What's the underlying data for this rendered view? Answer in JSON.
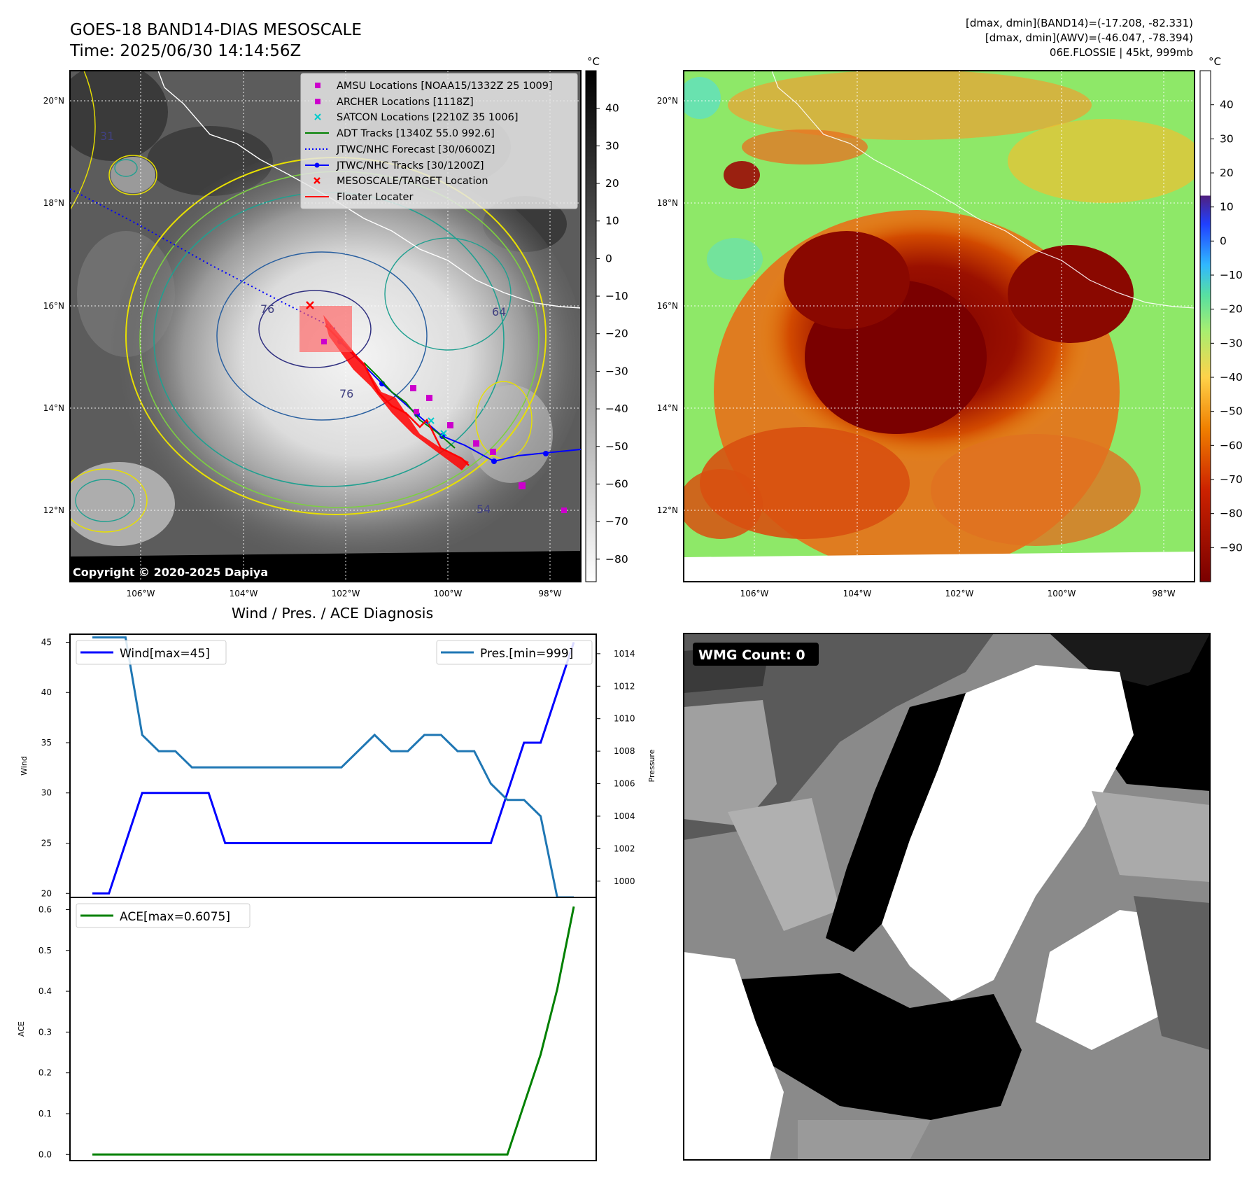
{
  "header": {
    "title_line1": "GOES-18 BAND14-DIAS MESOSCALE",
    "title_line2": "Time: 2025/06/30 14:14:56Z",
    "info_line1": "[dmax, dmin](BAND14)=(-17.208, -82.331)",
    "info_line2": "[dmax, dmin](AWV)=(-46.047, -78.394)",
    "info_line3": "06E.FLOSSIE | 45kt, 999mb"
  },
  "copyright": "Copyright © 2020-2025 Dapiya",
  "colors": {
    "wind": "#0000ff",
    "pressure": "#1f77b4",
    "ace": "#008000",
    "amsu": "#cc00cc",
    "archer": "#cc00cc",
    "satcon": "#00cccc",
    "adt": "#008000",
    "forecast": "#0000ff",
    "best_track": "#0000ff",
    "target": "#ff0000",
    "floater": "#ff0000"
  },
  "map": {
    "lon_ticks": [
      "106°W",
      "104°W",
      "102°W",
      "100°W",
      "98°W"
    ],
    "lat_ticks": [
      "20°N",
      "18°N",
      "16°N",
      "14°N",
      "12°N"
    ],
    "contour_labels": [
      "76",
      "64",
      "76",
      "54",
      "31"
    ],
    "legend": [
      {
        "label": "AMSU Locations [NOAA15/1332Z 25 1009]",
        "icon": "square-marker"
      },
      {
        "label": "ARCHER Locations [1118Z]",
        "icon": "square-marker"
      },
      {
        "label": "SATCON Locations [2210Z 35 1006]",
        "icon": "x-marker"
      },
      {
        "label": "ADT Tracks [1340Z 55.0 992.6]",
        "icon": "solid-line"
      },
      {
        "label": "JTWC/NHC Forecast [30/0600Z]",
        "icon": "dotted-line"
      },
      {
        "label": "JTWC/NHC Tracks [30/1200Z]",
        "icon": "line-with-dots"
      },
      {
        "label": "MESOSCALE/TARGET Location",
        "icon": "x-marker"
      },
      {
        "label": "Floater Locater",
        "icon": "solid-line"
      }
    ]
  },
  "colorbar_left": {
    "unit": "°C",
    "ticks": [
      "40",
      "30",
      "20",
      "10",
      "0",
      "−10",
      "−20",
      "−30",
      "−40",
      "−50",
      "−60",
      "−70",
      "−80"
    ]
  },
  "colorbar_right": {
    "unit": "°C",
    "ticks": [
      "40",
      "30",
      "20",
      "10",
      "0",
      "−10",
      "−20",
      "−30",
      "−40",
      "−50",
      "−60",
      "−70",
      "−80",
      "−90"
    ]
  },
  "chart_data": [
    {
      "type": "line",
      "title": "Wind / Pres. / ACE Diagnosis",
      "ylabel": "Wind",
      "y2label": "Pressure",
      "ylim": [
        19.6,
        45.8
      ],
      "y2lim": [
        999,
        1015.2
      ],
      "yticks": [
        "45",
        "40",
        "35",
        "30",
        "25",
        "20"
      ],
      "y2ticks": [
        "1014",
        "1012",
        "1010",
        "1008",
        "1006",
        "1004",
        "1002",
        "1000"
      ],
      "series": [
        {
          "name": "Wind[max=45]",
          "axis": "left",
          "x": [
            0,
            1,
            2,
            3,
            4,
            5,
            6,
            7,
            8,
            9,
            10,
            11,
            12,
            13,
            14,
            15,
            16,
            17,
            18,
            19,
            20,
            21,
            22,
            23,
            24,
            25,
            26,
            27,
            28,
            29
          ],
          "values": [
            20,
            20,
            25,
            30,
            30,
            30,
            30,
            30,
            25,
            25,
            25,
            25,
            25,
            25,
            25,
            25,
            25,
            25,
            25,
            25,
            25,
            25,
            25,
            25,
            25,
            30,
            35,
            35,
            40,
            45
          ]
        },
        {
          "name": "Pres.[min=999]",
          "axis": "right",
          "x": [
            0,
            1,
            2,
            3,
            4,
            5,
            6,
            7,
            8,
            9,
            10,
            11,
            12,
            13,
            14,
            15,
            16,
            17,
            18,
            19,
            20,
            21,
            22,
            23,
            24,
            25,
            26,
            27,
            28,
            29
          ],
          "values": [
            1015,
            1015,
            1015,
            1009,
            1008,
            1008,
            1007,
            1007,
            1007,
            1007,
            1007,
            1007,
            1007,
            1007,
            1007,
            1007,
            1008,
            1009,
            1008,
            1008,
            1009,
            1009,
            1008,
            1008,
            1006,
            1005,
            1005,
            1004,
            999,
            999
          ]
        }
      ]
    },
    {
      "type": "line",
      "ylabel": "ACE",
      "ylim": [
        -0.015,
        0.63
      ],
      "yticks": [
        "0.6",
        "0.5",
        "0.4",
        "0.3",
        "0.2",
        "0.1",
        "0.0"
      ],
      "series": [
        {
          "name": "ACE[max=0.6075]",
          "x": [
            0,
            1,
            2,
            3,
            4,
            5,
            6,
            7,
            8,
            9,
            10,
            11,
            12,
            13,
            14,
            15,
            16,
            17,
            18,
            19,
            20,
            21,
            22,
            23,
            24,
            25,
            26,
            27,
            28,
            29
          ],
          "values": [
            0,
            0,
            0,
            0,
            0,
            0,
            0,
            0,
            0,
            0,
            0,
            0,
            0,
            0,
            0,
            0,
            0,
            0,
            0,
            0,
            0,
            0,
            0,
            0,
            0,
            0,
            0.1225,
            0.245,
            0.405,
            0.6075
          ]
        }
      ]
    }
  ],
  "wmg": {
    "label": "WMG Count: 0"
  }
}
